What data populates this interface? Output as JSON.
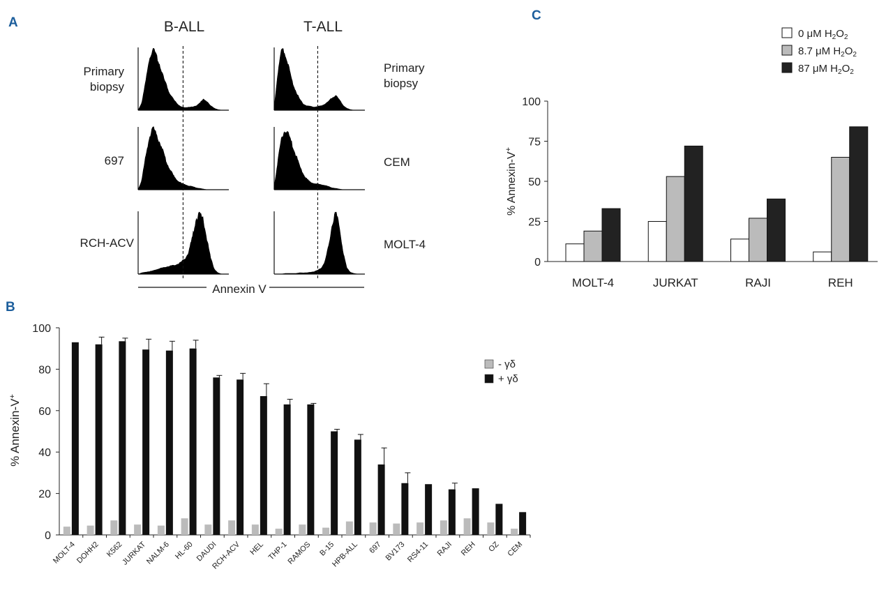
{
  "panel_labels": [
    "A",
    "B",
    "C"
  ],
  "chart_data": [
    {
      "panel": "A",
      "type": "histogram",
      "column_titles": [
        "B-ALL",
        "T-ALL"
      ],
      "left_row_labels": [
        "Primary biopsy",
        "697",
        "RCH-ACV"
      ],
      "right_row_labels": [
        "Primary biopsy",
        "CEM",
        "MOLT-4"
      ],
      "xlabel": "Annexin V",
      "histograms": [
        {
          "column": "B-ALL",
          "sample": "Primary biopsy",
          "x": [
            0,
            0.04,
            0.08,
            0.12,
            0.16,
            0.2,
            0.24,
            0.28,
            0.32,
            0.36,
            0.4,
            0.44,
            0.48,
            0.52,
            0.56,
            0.6,
            0.64,
            0.68,
            0.72,
            0.76,
            0.8,
            0.84,
            0.88,
            0.92,
            0.96,
            1
          ],
          "y": [
            0,
            0.12,
            0.42,
            0.8,
            0.96,
            0.88,
            0.72,
            0.52,
            0.36,
            0.24,
            0.15,
            0.09,
            0.05,
            0.04,
            0.05,
            0.05,
            0.07,
            0.12,
            0.17,
            0.14,
            0.07,
            0.03,
            0.01,
            0,
            0,
            0
          ]
        },
        {
          "column": "B-ALL",
          "sample": "697",
          "x": [
            0,
            0.04,
            0.08,
            0.12,
            0.16,
            0.2,
            0.24,
            0.28,
            0.32,
            0.36,
            0.4,
            0.44,
            0.48,
            0.52,
            0.56,
            0.6,
            0.64,
            0.68,
            0.72,
            0.76,
            0.8,
            0.84,
            0.88,
            0.92,
            0.96,
            1
          ],
          "y": [
            0,
            0.15,
            0.5,
            0.82,
            0.97,
            0.9,
            0.75,
            0.58,
            0.42,
            0.3,
            0.2,
            0.14,
            0.1,
            0.08,
            0.06,
            0.05,
            0.03,
            0.02,
            0.01,
            0,
            0,
            0,
            0,
            0,
            0,
            0
          ]
        },
        {
          "column": "B-ALL",
          "sample": "RCH-ACV",
          "x": [
            0,
            0.04,
            0.08,
            0.12,
            0.16,
            0.2,
            0.24,
            0.28,
            0.32,
            0.36,
            0.4,
            0.44,
            0.48,
            0.52,
            0.56,
            0.6,
            0.64,
            0.68,
            0.72,
            0.76,
            0.8,
            0.84,
            0.88,
            0.92,
            0.96,
            1
          ],
          "y": [
            0,
            0.02,
            0.03,
            0.04,
            0.05,
            0.07,
            0.09,
            0.1,
            0.12,
            0.13,
            0.14,
            0.16,
            0.2,
            0.25,
            0.36,
            0.6,
            0.88,
            0.98,
            0.85,
            0.55,
            0.25,
            0.08,
            0.02,
            0,
            0,
            0
          ]
        },
        {
          "column": "T-ALL",
          "sample": "Primary biopsy",
          "x": [
            0,
            0.04,
            0.08,
            0.12,
            0.16,
            0.2,
            0.24,
            0.28,
            0.32,
            0.36,
            0.4,
            0.44,
            0.48,
            0.52,
            0.56,
            0.6,
            0.64,
            0.68,
            0.72,
            0.76,
            0.8,
            0.84,
            0.88,
            0.92,
            0.96,
            1
          ],
          "y": [
            0.05,
            0.6,
            0.95,
            0.9,
            0.7,
            0.45,
            0.3,
            0.18,
            0.1,
            0.07,
            0.06,
            0.05,
            0.06,
            0.07,
            0.1,
            0.14,
            0.2,
            0.24,
            0.16,
            0.08,
            0.03,
            0.01,
            0,
            0,
            0,
            0
          ]
        },
        {
          "column": "T-ALL",
          "sample": "CEM",
          "x": [
            0,
            0.04,
            0.08,
            0.12,
            0.16,
            0.2,
            0.24,
            0.28,
            0.32,
            0.36,
            0.4,
            0.44,
            0.48,
            0.52,
            0.56,
            0.6,
            0.64,
            0.68,
            0.72,
            0.76,
            0.8,
            0.84,
            0.88,
            0.92,
            0.96,
            1
          ],
          "y": [
            0.05,
            0.45,
            0.82,
            0.95,
            0.88,
            0.72,
            0.55,
            0.38,
            0.25,
            0.17,
            0.12,
            0.1,
            0.09,
            0.08,
            0.07,
            0.05,
            0.03,
            0.02,
            0.01,
            0,
            0,
            0,
            0,
            0,
            0,
            0
          ]
        },
        {
          "column": "T-ALL",
          "sample": "MOLT-4",
          "x": [
            0,
            0.04,
            0.08,
            0.12,
            0.16,
            0.2,
            0.24,
            0.28,
            0.32,
            0.36,
            0.4,
            0.44,
            0.48,
            0.52,
            0.56,
            0.6,
            0.64,
            0.68,
            0.72,
            0.76,
            0.8,
            0.84,
            0.88,
            0.92,
            0.96,
            1
          ],
          "y": [
            0,
            0,
            0,
            0.01,
            0.01,
            0.01,
            0.01,
            0.02,
            0.02,
            0.02,
            0.03,
            0.04,
            0.06,
            0.1,
            0.2,
            0.45,
            0.8,
            0.98,
            0.75,
            0.35,
            0.1,
            0.03,
            0.01,
            0,
            0,
            0
          ]
        }
      ],
      "threshold_x": 0.48
    },
    {
      "panel": "B",
      "type": "bar",
      "ylabel": "% Annexin-V+",
      "ylim": [
        0,
        100
      ],
      "yticks": [
        0,
        20,
        40,
        60,
        80,
        100
      ],
      "categories": [
        "MOLT-4",
        "DOHH2",
        "K562",
        "JURKAT",
        "NALM-6",
        "HL-60",
        "DAUDI",
        "RCH-ACV",
        "HEL",
        "THP-1",
        "RAMOS",
        "B-15",
        "HPB-ALL",
        "697",
        "BV173",
        "RS4-11",
        "RAJI",
        "REH",
        "OZ",
        "CEM"
      ],
      "series": [
        {
          "name": "- γδ",
          "color": "#bbbbbb",
          "values": [
            4,
            4.5,
            7,
            5,
            4.5,
            8,
            5,
            7,
            5,
            3,
            5,
            3.5,
            6.5,
            6,
            5.5,
            6,
            7,
            8,
            6,
            3
          ],
          "errors": [
            0,
            0,
            0,
            0,
            0,
            0,
            0,
            0,
            0,
            0,
            0,
            0,
            0,
            0,
            0,
            0,
            0,
            0,
            0,
            0
          ]
        },
        {
          "name": "+ γδ",
          "color": "#111111",
          "values": [
            93,
            92,
            93.5,
            89.5,
            89,
            90,
            76,
            75,
            67,
            63,
            63,
            50,
            46,
            34,
            25,
            24.5,
            22,
            22.5,
            15,
            11
          ],
          "errors": [
            0,
            3.5,
            1.5,
            5,
            4.5,
            4,
            1,
            3,
            6,
            2.5,
            0.5,
            1,
            2.5,
            8,
            5,
            0,
            3,
            0,
            0,
            0
          ]
        }
      ]
    },
    {
      "panel": "C",
      "type": "bar",
      "ylabel": "% Annexin-V+",
      "ylim": [
        0,
        100
      ],
      "yticks": [
        0,
        25,
        50,
        75,
        100
      ],
      "categories": [
        "MOLT-4",
        "JURKAT",
        "RAJI",
        "REH"
      ],
      "series": [
        {
          "name": "0 μM H2O2",
          "color": "#ffffff",
          "values": [
            11,
            25,
            14,
            6
          ]
        },
        {
          "name": "8.7 μM H2O2",
          "color": "#bbbbbb",
          "values": [
            19,
            53,
            27,
            65
          ]
        },
        {
          "name": "87 μM H2O2",
          "color": "#222222",
          "values": [
            33,
            72,
            39,
            84
          ]
        }
      ]
    }
  ]
}
